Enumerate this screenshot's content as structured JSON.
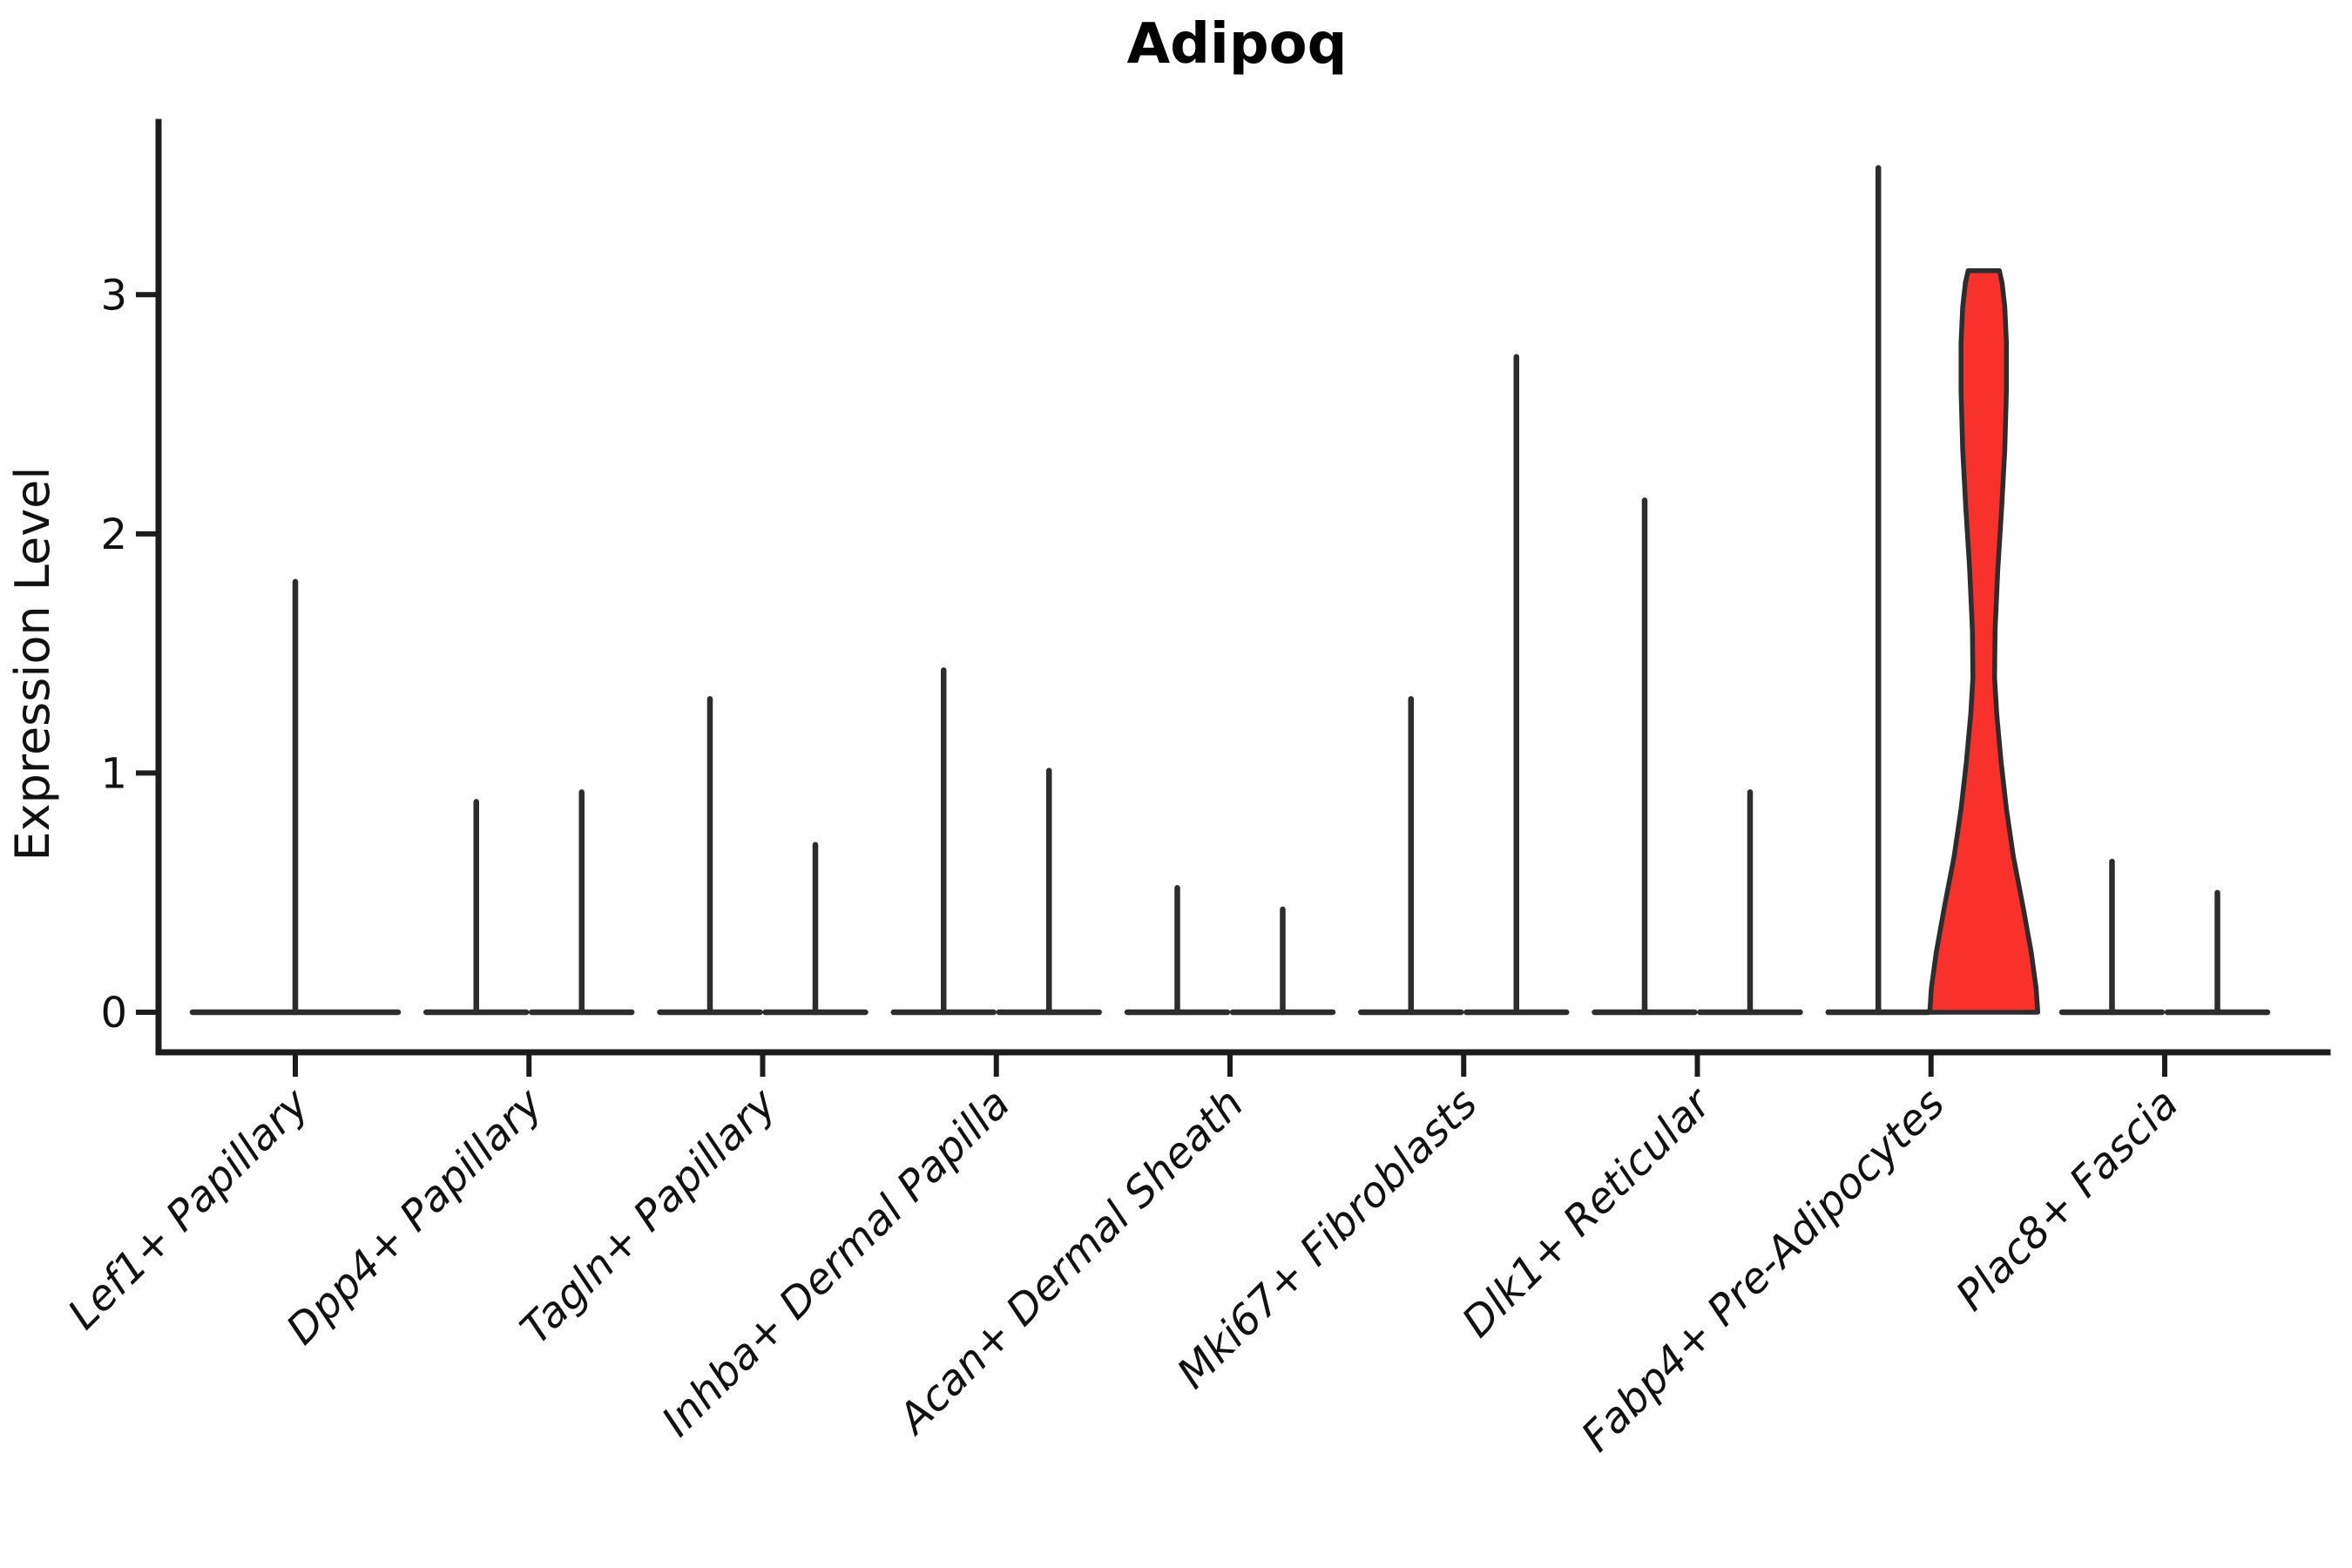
{
  "chart_data": {
    "type": "violin",
    "title": "Adipoq",
    "xlabel": "",
    "ylabel": "Expression Level",
    "yticks": [
      0,
      1,
      2,
      3
    ],
    "ytick_labels": [
      "0",
      "1",
      "2",
      "3"
    ],
    "ylim": [
      -0.17,
      3.72
    ],
    "grid": false,
    "legend": "none",
    "categories": [
      "Lef1+ Papillary",
      "Dpp4+ Papillary",
      "Tagln+ Papillary",
      "Inhba+ Dermal Papilla",
      "Acan+ Dermal Sheath",
      "Mki67+ Fibroblasts",
      "Dlk1+ Reticular",
      "Fabp4+ Pre-Adipocytes",
      "Plac8+ Fascia"
    ],
    "groups": [
      {
        "category": "Lef1+ Papillary",
        "violins": [
          {
            "pos": 0,
            "span": 2,
            "max": 1.8
          }
        ]
      },
      {
        "category": "Dpp4+ Papillary",
        "violins": [
          {
            "pos": -0.5,
            "span": 1,
            "max": 0.88
          },
          {
            "pos": 0.5,
            "span": 1,
            "max": 0.92
          }
        ]
      },
      {
        "category": "Tagln+ Papillary",
        "violins": [
          {
            "pos": -0.5,
            "span": 1,
            "max": 1.31
          },
          {
            "pos": 0.5,
            "span": 1,
            "max": 0.7
          }
        ]
      },
      {
        "category": "Inhba+ Dermal Papilla",
        "violins": [
          {
            "pos": -0.5,
            "span": 1,
            "max": 1.43
          },
          {
            "pos": 0.5,
            "span": 1,
            "max": 1.01
          }
        ]
      },
      {
        "category": "Acan+ Dermal Sheath",
        "violins": [
          {
            "pos": -0.5,
            "span": 1,
            "max": 0.52
          },
          {
            "pos": 0.5,
            "span": 1,
            "max": 0.43
          }
        ]
      },
      {
        "category": "Mki67+ Fibroblasts",
        "violins": [
          {
            "pos": -0.5,
            "span": 1,
            "max": 1.31
          },
          {
            "pos": 0.5,
            "span": 1,
            "max": 2.74
          }
        ]
      },
      {
        "category": "Dlk1+ Reticular",
        "violins": [
          {
            "pos": -0.5,
            "span": 1,
            "max": 2.14
          },
          {
            "pos": 0.5,
            "span": 1,
            "max": 0.92
          }
        ]
      },
      {
        "category": "Fabp4+ Pre-Adipocytes",
        "violins": [
          {
            "pos": -0.5,
            "span": 1,
            "max": 3.53
          },
          {
            "pos": 0.5,
            "span": 1,
            "max": 3.1,
            "highlight": true,
            "profile": [
              [
                0.0,
                1.0
              ],
              [
                0.1,
                0.97
              ],
              [
                0.25,
                0.88
              ],
              [
                0.45,
                0.72
              ],
              [
                0.65,
                0.55
              ],
              [
                0.85,
                0.42
              ],
              [
                1.05,
                0.32
              ],
              [
                1.25,
                0.24
              ],
              [
                1.4,
                0.2
              ],
              [
                1.6,
                0.21
              ],
              [
                1.85,
                0.26
              ],
              [
                2.1,
                0.33
              ],
              [
                2.35,
                0.39
              ],
              [
                2.6,
                0.42
              ],
              [
                2.8,
                0.42
              ],
              [
                2.95,
                0.39
              ],
              [
                3.05,
                0.34
              ],
              [
                3.1,
                0.29
              ]
            ]
          }
        ]
      },
      {
        "category": "Plac8+ Fascia",
        "violins": [
          {
            "pos": -0.5,
            "span": 1,
            "max": 0.63
          },
          {
            "pos": 0.5,
            "span": 1,
            "max": 0.5
          }
        ]
      }
    ],
    "colors": {
      "highlight_fill": "#f8312d",
      "violin_line": "#2d2d2d",
      "spine": "#1c1c1c",
      "background": "#ffffff",
      "text": "#111111"
    }
  }
}
